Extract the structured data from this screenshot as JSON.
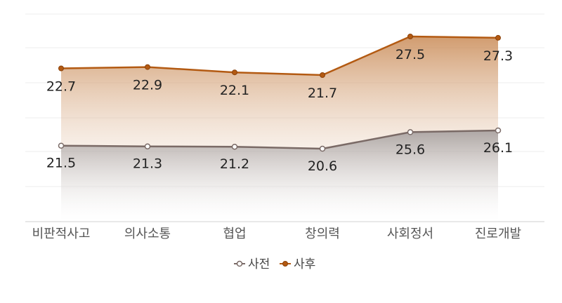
{
  "chart_data": {
    "type": "area",
    "categories": [
      "비판적사고",
      "의사소통",
      "협업",
      "창의력",
      "사회정서",
      "진로개발"
    ],
    "series": [
      {
        "name": "사전",
        "values": [
          21.5,
          21.3,
          21.2,
          20.6,
          25.6,
          26.1
        ],
        "color": "#7a6a66"
      },
      {
        "name": "사후",
        "values": [
          22.7,
          22.9,
          22.1,
          21.7,
          27.5,
          27.3
        ],
        "color": "#b35a12"
      }
    ],
    "title": "",
    "xlabel": "",
    "ylabel": "",
    "grid": true,
    "legend": "bottom",
    "y_axis_labels_shown": false
  }
}
